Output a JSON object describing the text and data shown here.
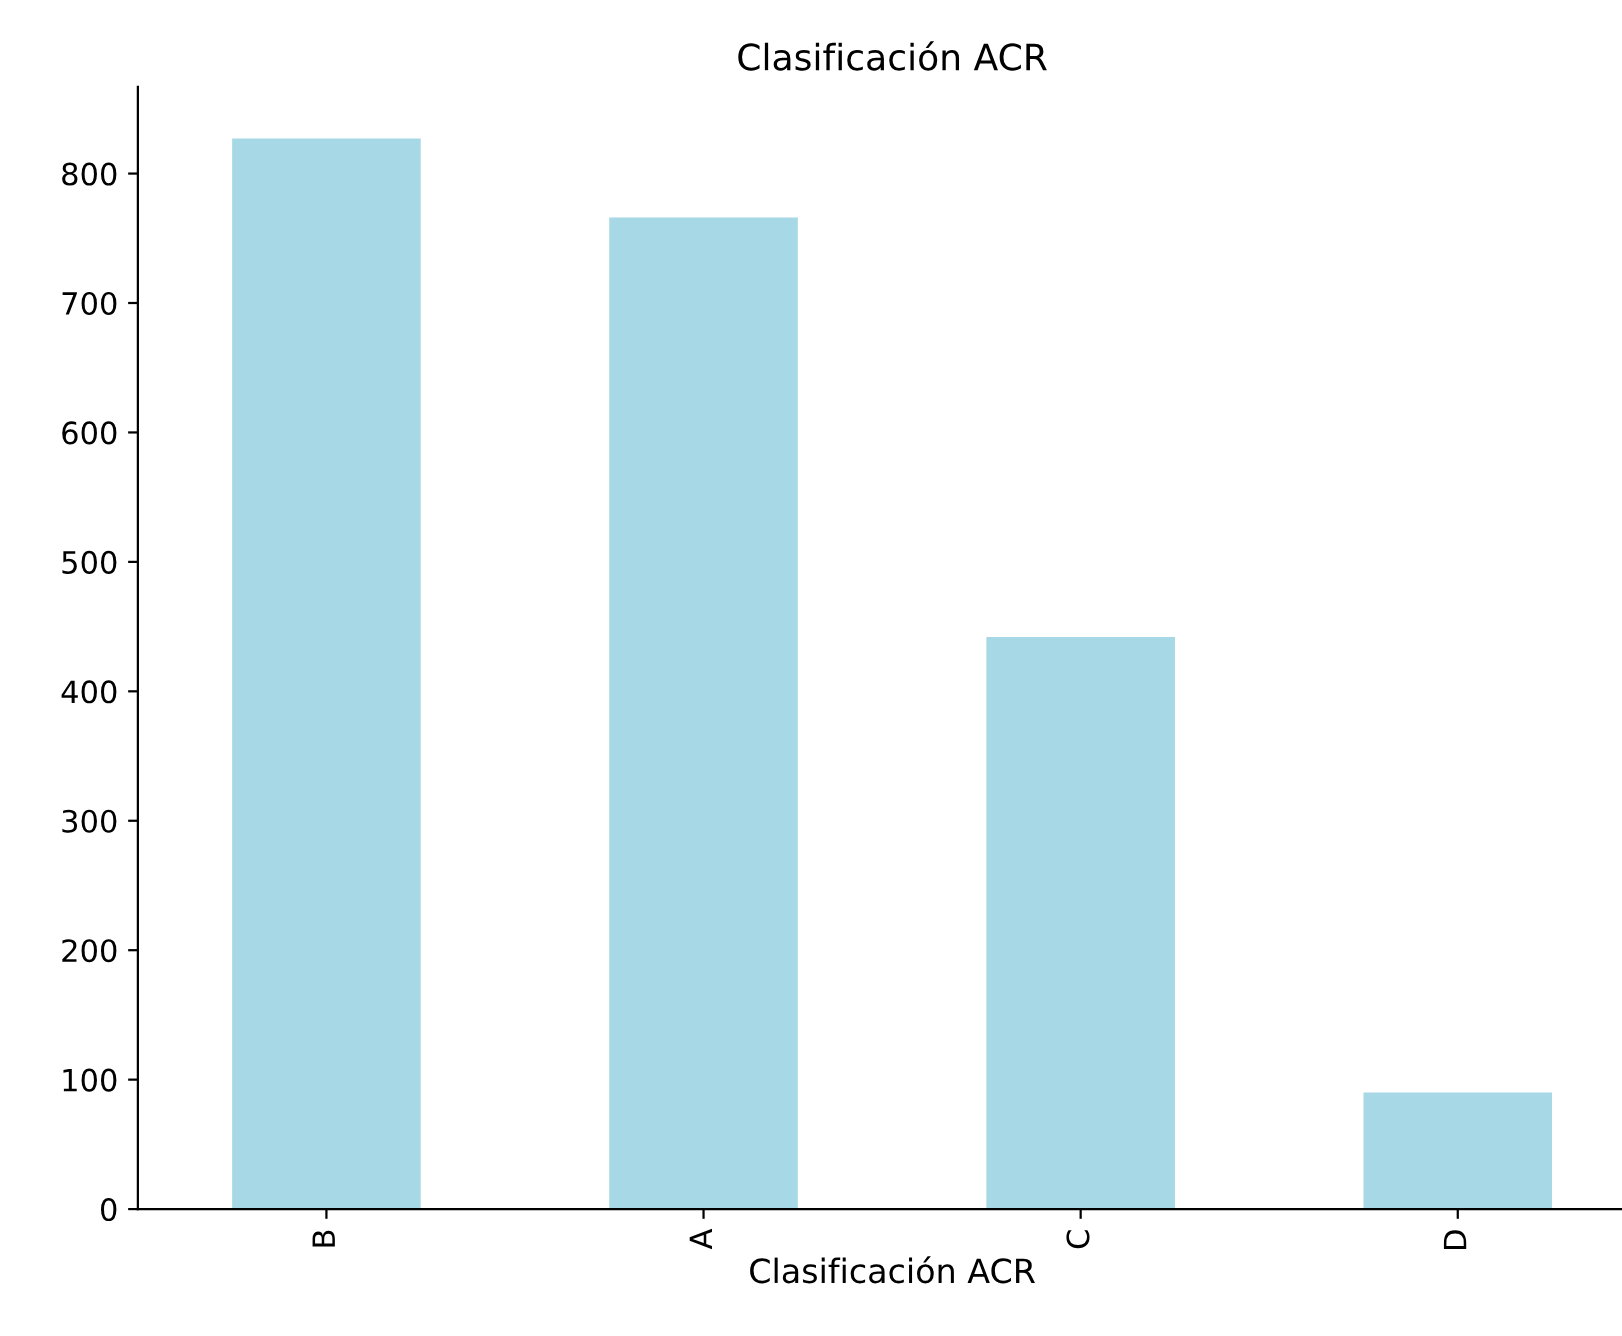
{
  "chart_data": {
    "type": "bar",
    "title": "Clasificación ACR",
    "xlabel": "Clasificación ACR",
    "categories": [
      "B",
      "A",
      "C",
      "D"
    ],
    "values": [
      827,
      766,
      442,
      90
    ],
    "color": "#a6d8e6",
    "ylim": [
      0,
      867
    ],
    "yticks": [
      0,
      100,
      200,
      300,
      400,
      500,
      600,
      700,
      800
    ],
    "grid": false
  }
}
